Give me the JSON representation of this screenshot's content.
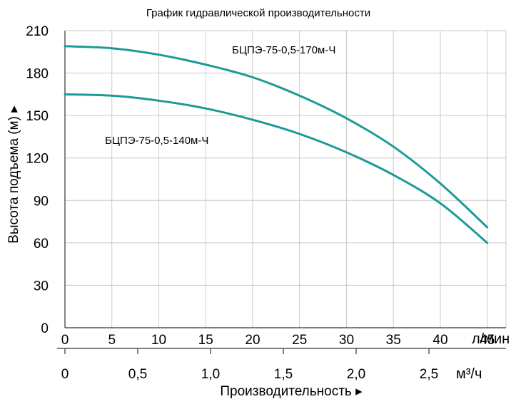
{
  "chart_data": {
    "type": "line",
    "title": "График гидравлической производительности",
    "ylabel": "Высота подъема (м) ▸",
    "xlabel": "Производительность ▸",
    "ylim": [
      0,
      210
    ],
    "yticks": [
      "0",
      "30",
      "60",
      "90",
      "120",
      "150",
      "180",
      "210"
    ],
    "xlim": [
      0,
      47
    ],
    "x_primary": {
      "unit": "л/мин",
      "ticks": [
        "0",
        "5",
        "10",
        "15",
        "20",
        "25",
        "30",
        "35",
        "40",
        "45"
      ]
    },
    "x_secondary": {
      "unit": "м³/ч",
      "ticks": [
        "0",
        "0,5",
        "1,0",
        "1,5",
        "2,0",
        "2,5"
      ]
    },
    "grid": true,
    "series": [
      {
        "name": "БЦПЭ-75-0,5-170м-Ч",
        "color": "#1e9a96",
        "x": [
          0,
          5,
          10,
          15,
          20,
          25,
          30,
          35,
          40,
          45
        ],
        "y": [
          199,
          197.5,
          193,
          186,
          177,
          164,
          148,
          128,
          102,
          71
        ]
      },
      {
        "name": "БЦПЭ-75-0,5-140м-Ч",
        "color": "#1e9a96",
        "x": [
          0,
          5,
          10,
          15,
          20,
          25,
          30,
          35,
          40,
          45
        ],
        "y": [
          165,
          164,
          160.5,
          155,
          147,
          137,
          124,
          108,
          88,
          60
        ]
      }
    ]
  }
}
